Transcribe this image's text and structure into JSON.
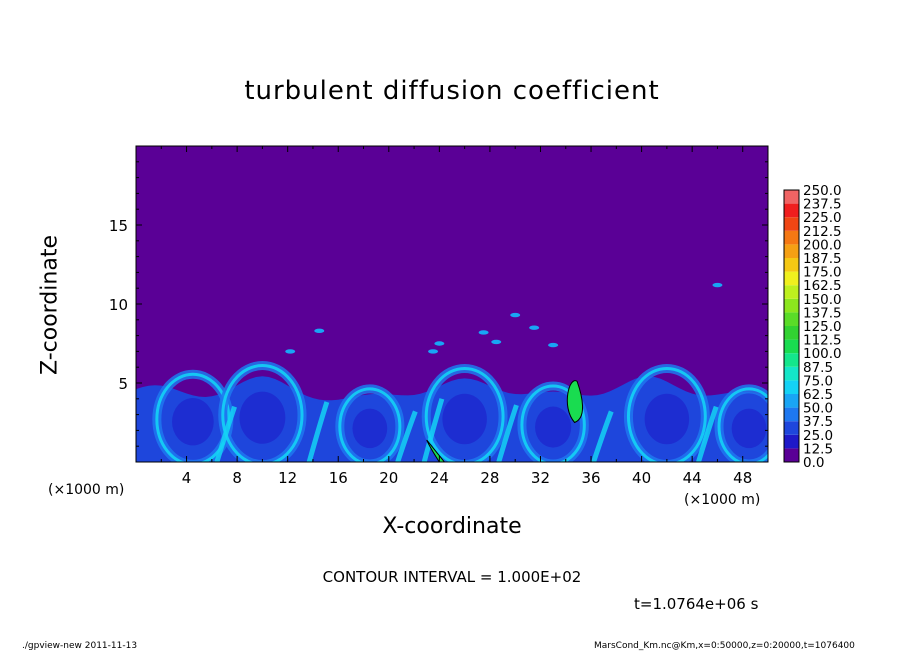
{
  "chart_data": {
    "type": "heatmap",
    "title": "turbulent diffusion coefficient",
    "xlabel": "X-coordinate",
    "ylabel": "Z-coordinate",
    "x_unit": "(×1000 m)",
    "xlim": [
      0,
      50
    ],
    "ylim": [
      0,
      20
    ],
    "x_ticks": [
      "4",
      "8",
      "12",
      "16",
      "20",
      "24",
      "28",
      "32",
      "36",
      "40",
      "44",
      "48"
    ],
    "y_ticks": [
      "5",
      "10",
      "15"
    ],
    "colorbar": {
      "levels": [
        "0.0",
        "12.5",
        "25.0",
        "37.5",
        "50.0",
        "62.5",
        "75.0",
        "87.5",
        "100.0",
        "112.5",
        "125.0",
        "137.5",
        "150.0",
        "162.5",
        "175.0",
        "187.5",
        "200.0",
        "212.5",
        "225.0",
        "237.5",
        "250.0"
      ],
      "colors": [
        "#5a0096",
        "#1e19c8",
        "#1e46dc",
        "#1e78f0",
        "#19a5f5",
        "#14d2f5",
        "#14e6c8",
        "#14e68c",
        "#19dc50",
        "#32d232",
        "#5adc28",
        "#8ce61e",
        "#bef01e",
        "#f0f01e",
        "#f5c814",
        "#f5a014",
        "#f57814",
        "#f04614",
        "#f01e1e",
        "#f06464"
      ]
    },
    "background_value": "0.0",
    "boundary_layer_top_km": 5,
    "contour_interval": "CONTOUR INTERVAL = 1.000E+02",
    "grid": false
  },
  "annotations": {
    "time": "t=1.0764e+06 s",
    "footer_left": "./gpview-new   2011-11-13",
    "footer_right": "MarsCond_Km.nc@Km,x=0:50000,z=0:20000,t=1076400"
  }
}
